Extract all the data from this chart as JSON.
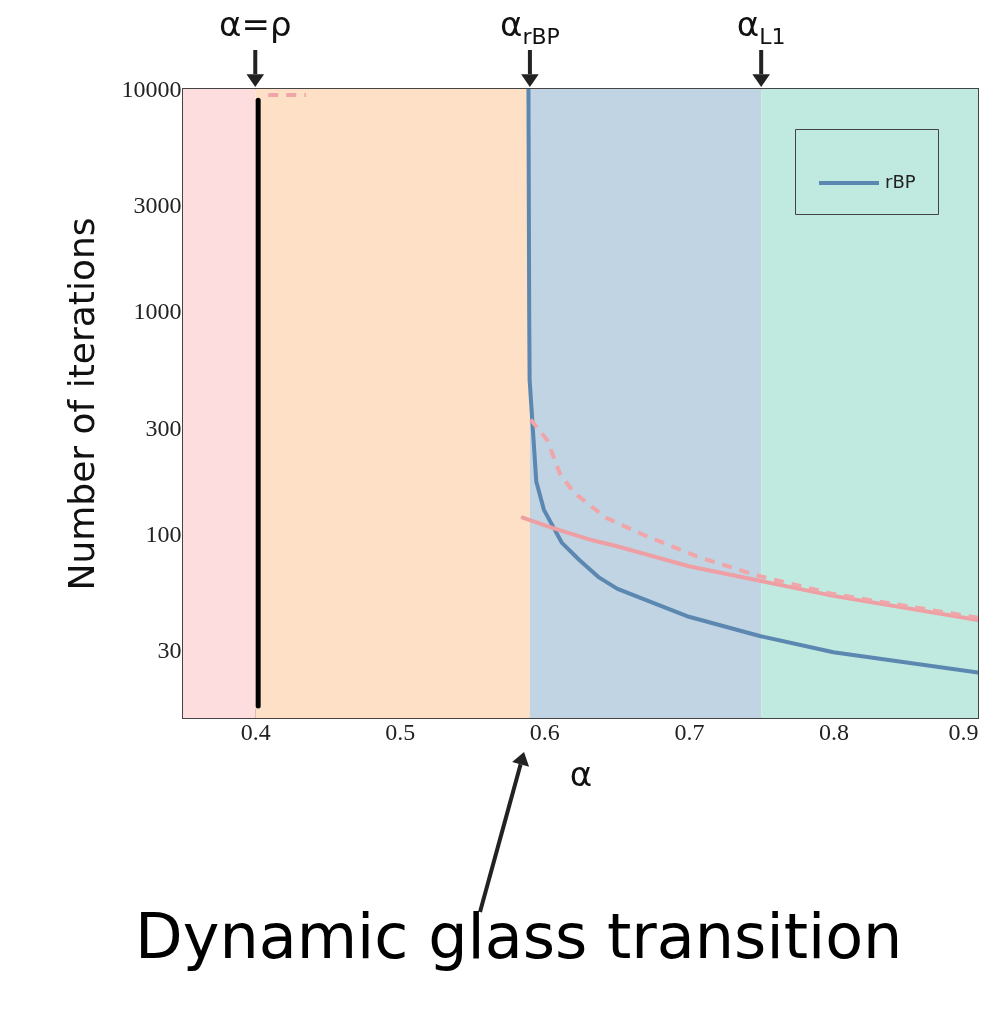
{
  "chart_data": {
    "type": "line",
    "xlabel": "α",
    "ylabel": "Number of iterations",
    "xlim": [
      0.35,
      0.9
    ],
    "xticks": [
      0.4,
      0.5,
      0.6,
      0.7,
      0.8,
      0.9
    ],
    "ylim": [
      15,
      10000
    ],
    "yticks": [
      30,
      100,
      300,
      1000,
      3000,
      10000
    ],
    "log": "y",
    "legend": "top right",
    "bands": [
      {
        "axis": "x",
        "from": 0.35,
        "to": 0.4,
        "color": "#fdddde"
      },
      {
        "axis": "x",
        "from": 0.4,
        "to": 0.59,
        "color": "#fde0c5",
        "label": "α=ρ"
      },
      {
        "axis": "x",
        "from": 0.59,
        "to": 0.75,
        "color": "#c1d4e3",
        "label": "α$_{rBP}$"
      },
      {
        "axis": "x",
        "from": 0.75,
        "to": 0.9,
        "color": "#c0eae0",
        "label": "α$_{L1}$"
      }
    ],
    "series": [
      {
        "name": "rBP",
        "color": "#5b87b1",
        "x": [
          0.589,
          0.5895,
          0.5898,
          0.5944,
          0.5997,
          0.612,
          0.624,
          0.638,
          0.6506,
          0.7,
          0.749,
          0.8,
          0.9
        ],
        "values": [
          10000,
          1000,
          495,
          173,
          129,
          92,
          77,
          64,
          57,
          42.7,
          35,
          29.6,
          24
        ]
      },
      {
        "color": "#ee9fa3",
        "x": [
          0.585,
          0.6055,
          0.631,
          0.649,
          0.7,
          0.749,
          0.8,
          0.9
        ],
        "values": [
          119,
          107,
          95,
          89,
          72,
          62,
          53,
          41.3
        ]
      },
      {
        "color": "#f0a5a8",
        "line_style": "dashed",
        "x": [
          0.5905,
          0.602,
          0.611,
          0.6205,
          0.6425,
          0.668,
          0.707,
          0.749,
          0.8,
          0.9
        ],
        "values": [
          328,
          265,
          186,
          154,
          119,
          100,
          79,
          65,
          54,
          42.3
        ]
      },
      {
        "color": "#f0a5a8",
        "line_style": "dashed",
        "x": [
          0.409,
          0.435
        ],
        "values": [
          9400,
          9400
        ]
      },
      {
        "color": "#000000",
        "x": [
          0.402,
          0.402
        ],
        "values": [
          8900,
          17
        ]
      }
    ],
    "annotations": [
      "Dynamic glass transition"
    ]
  }
}
